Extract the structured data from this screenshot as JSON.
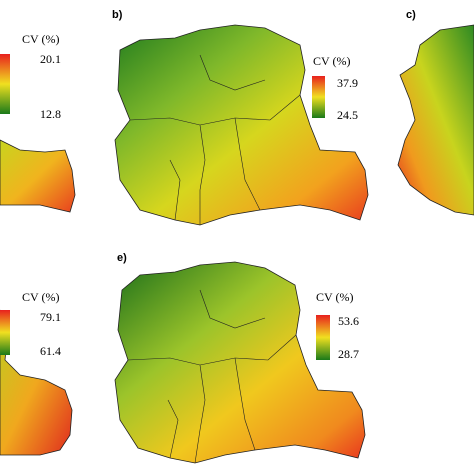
{
  "panels": [
    {
      "legend_title": "CV (%)",
      "max": 20.1,
      "min": 12.8
    },
    {
      "label": "b)",
      "legend_title": "CV (%)",
      "max": 37.9,
      "min": 24.5
    },
    {
      "label": "c)"
    },
    {
      "legend_title": "CV (%)",
      "max": 79.1,
      "min": 61.4
    },
    {
      "label": "e)",
      "legend_title": "CV (%)",
      "max": 53.6,
      "min": 28.7
    }
  ]
}
